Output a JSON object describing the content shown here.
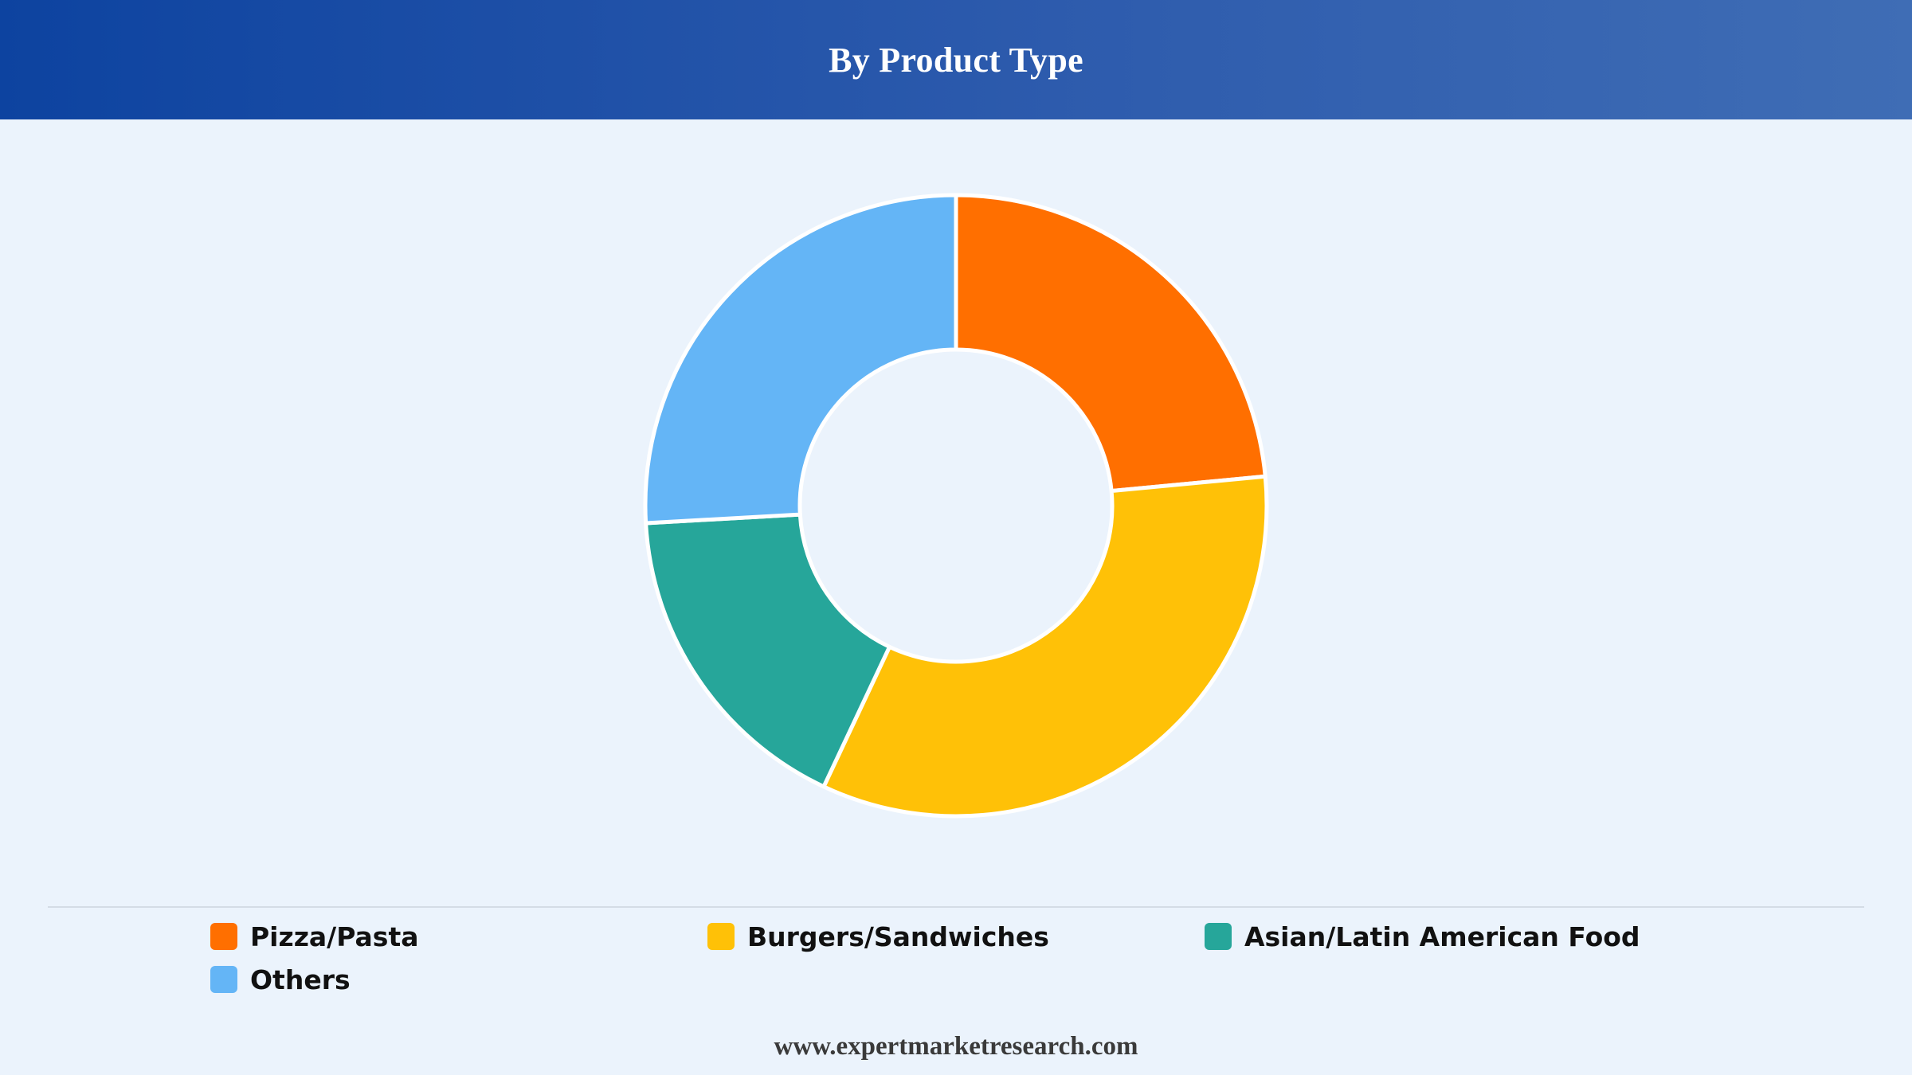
{
  "header": {
    "title": "By Product Type"
  },
  "chart_data": {
    "type": "pie",
    "title": "By Product Type",
    "donut": true,
    "legend_position": "bottom",
    "categories": [
      "Pizza/Pasta",
      "Burgers/Sandwiches",
      "Asian/Latin American Food",
      "Others"
    ],
    "values": [
      23.5,
      33.5,
      17.1,
      25.9
    ],
    "unit": "%",
    "colors": [
      "#ff6f00",
      "#ffc107",
      "#26a69a",
      "#64b5f6"
    ],
    "grid": false
  },
  "footer": {
    "source": "www.expertmarketresearch.com"
  }
}
